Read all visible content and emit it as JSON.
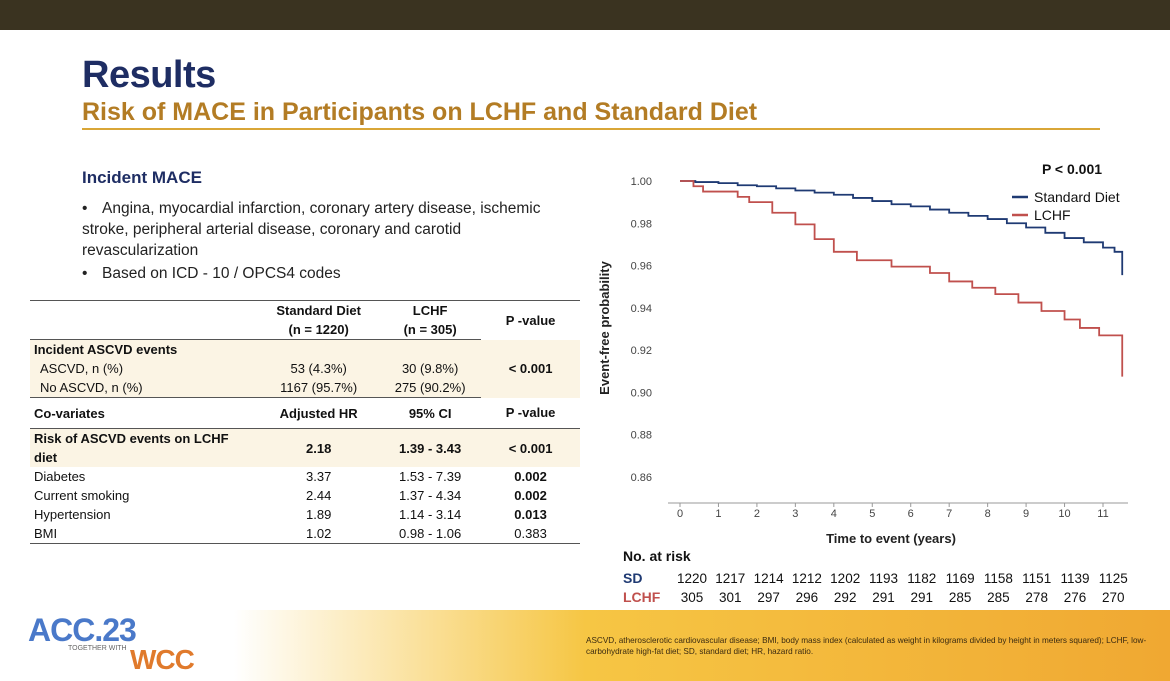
{
  "slide": {
    "title": "Results",
    "subtitle": "Risk of MACE in Participants on LCHF and Standard Diet",
    "section_title": "Incident MACE",
    "bullets": [
      "Angina, myocardial infarction, coronary artery disease, ischemic stroke, peripheral arterial disease, coronary and carotid revascularization",
      "Based on ICD - 10 / OPCS4 codes"
    ],
    "footnote": "ASCVD, atherosclerotic cardiovascular disease; BMI, body mass index (calculated as weight in kilograms divided by height in meters squared); LCHF, low-carbohydrate high-fat diet; SD, standard diet; HR, hazard ratio.",
    "logo": {
      "acc": "ACC.23",
      "together": "TOGETHER WITH",
      "wcc": "WCC"
    },
    "colors": {
      "navy": "#1e2d63",
      "gold": "#b37c24",
      "sd_line": "#1f3a73",
      "lchf_line": "#c0504d"
    }
  },
  "table": {
    "header1": {
      "col2a": "Standard Diet",
      "col2b": "(n = 1220)",
      "col3a": "LCHF",
      "col3b": "(n = 305)",
      "col4": "P -value"
    },
    "events_title": "Incident ASCVD events",
    "events_rows": [
      {
        "label": "ASCVD, n (%)",
        "sd": "53 (4.3%)",
        "lchf": "30 (9.8%)"
      },
      {
        "label": "No ASCVD, n (%)",
        "sd": "1167 (95.7%)",
        "lchf": "275 (90.2%)"
      }
    ],
    "events_p": "< 0.001",
    "header2": {
      "col1": "Co-variates",
      "col2": "Adjusted HR",
      "col3": "95% CI",
      "col4": "P -value"
    },
    "cov_rows": [
      {
        "label": "Risk of ASCVD events on LCHF diet",
        "hr": "2.18",
        "ci": "1.39 - 3.43",
        "p": "< 0.001"
      },
      {
        "label": "Diabetes",
        "hr": "3.37",
        "ci": "1.53 - 7.39",
        "p": "0.002"
      },
      {
        "label": "Current smoking",
        "hr": "2.44",
        "ci": "1.37 - 4.34",
        "p": "0.002"
      },
      {
        "label": "Hypertension",
        "hr": "1.89",
        "ci": "1.14 - 3.14",
        "p": "0.013"
      },
      {
        "label": "BMI",
        "hr": "1.02",
        "ci": "0.98 - 1.06",
        "p": "0.383"
      }
    ]
  },
  "chart_data": {
    "type": "line",
    "annotation": "P < 0.001",
    "xlabel": "Time to event (years)",
    "ylabel": "Event-free probability",
    "xlim": [
      0,
      11.5
    ],
    "ylim": [
      0.855,
      1.003
    ],
    "x_ticks": [
      0,
      1,
      2,
      3,
      4,
      5,
      6,
      7,
      8,
      9,
      10,
      11
    ],
    "y_ticks": [
      "1.00",
      "0.98",
      "0.96",
      "0.94",
      "0.92",
      "0.90",
      "0.88",
      "0.86"
    ],
    "legend_position": "top-right",
    "series": [
      {
        "name": "Standard Diet",
        "color": "#1f3a73",
        "x": [
          0,
          0.4,
          1.0,
          1.5,
          2.0,
          2.5,
          3.0,
          3.5,
          4.0,
          4.5,
          5.0,
          5.5,
          6.0,
          6.5,
          7.0,
          7.5,
          8.0,
          8.5,
          9.0,
          9.5,
          10.0,
          10.5,
          11.0,
          11.3,
          11.5
        ],
        "y": [
          1.0,
          0.9995,
          0.999,
          0.998,
          0.9975,
          0.9965,
          0.9955,
          0.9945,
          0.9935,
          0.992,
          0.9905,
          0.989,
          0.988,
          0.9865,
          0.985,
          0.9835,
          0.982,
          0.98,
          0.978,
          0.9755,
          0.973,
          0.971,
          0.9685,
          0.9665,
          0.9555
        ]
      },
      {
        "name": "LCHF",
        "color": "#c0504d",
        "x": [
          0,
          0.35,
          0.6,
          1.5,
          1.8,
          2.4,
          3.0,
          3.5,
          4.0,
          4.6,
          5.5,
          6.5,
          7.0,
          7.6,
          8.2,
          8.8,
          9.4,
          10.0,
          10.4,
          10.9,
          11.5
        ],
        "y": [
          1.0,
          0.9975,
          0.995,
          0.9925,
          0.99,
          0.985,
          0.9795,
          0.9725,
          0.9665,
          0.9625,
          0.9595,
          0.9565,
          0.9525,
          0.9495,
          0.9465,
          0.9425,
          0.9385,
          0.9345,
          0.9305,
          0.927,
          0.9075
        ]
      }
    ],
    "risk_table": {
      "title": "No. at risk",
      "rows": [
        {
          "label": "SD",
          "color": "#1f3a73",
          "values": [
            1220,
            1217,
            1214,
            1212,
            1202,
            1193,
            1182,
            1169,
            1158,
            1151,
            1139,
            1125
          ]
        },
        {
          "label": "LCHF",
          "color": "#c0504d",
          "values": [
            305,
            301,
            297,
            296,
            292,
            291,
            291,
            285,
            285,
            278,
            276,
            270
          ]
        }
      ]
    }
  }
}
